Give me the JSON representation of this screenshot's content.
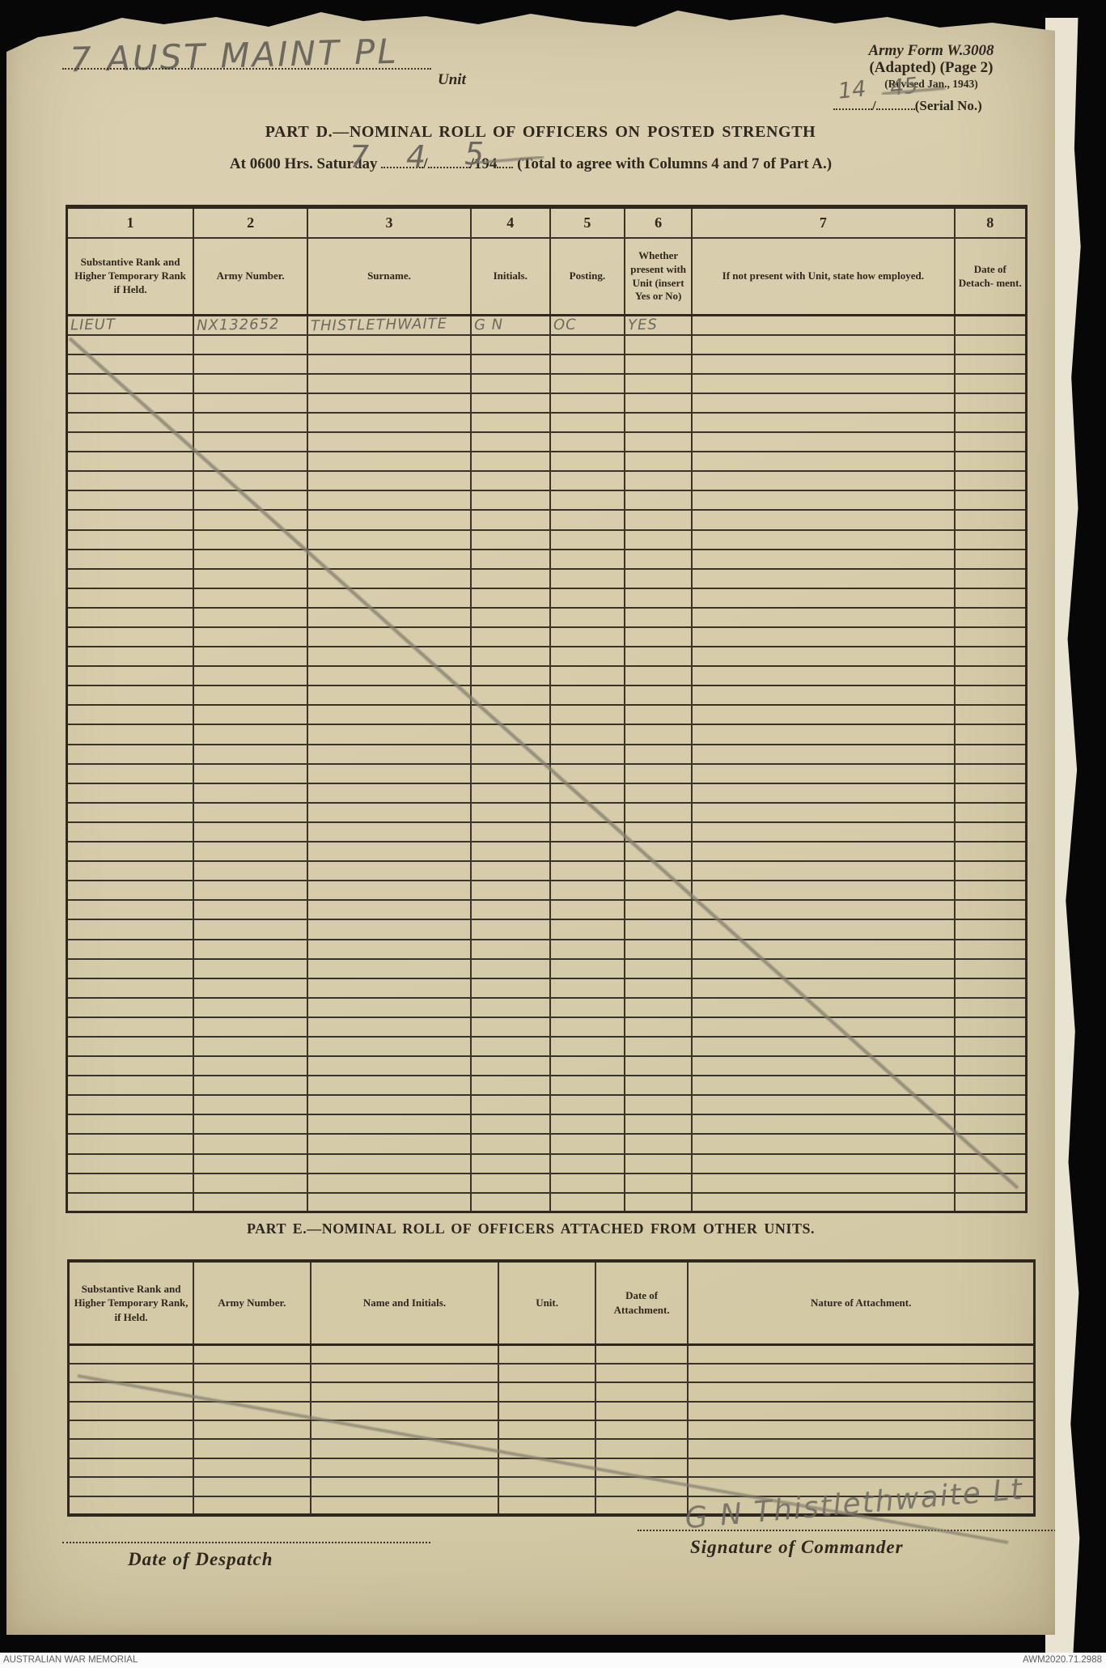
{
  "header": {
    "unit_handwritten": "7 AUST MAINT PL",
    "unit_label": "Unit",
    "form_name_line1": "Army Form W.3008",
    "form_name_line2": "(Adapted)  (Page 2)",
    "form_name_line3": "(Revised Jan., 1943)",
    "serial_handwritten_numerator": "14",
    "serial_handwritten_denominator": "45",
    "serial_slash": "/",
    "serial_label": "(Serial No.)"
  },
  "part_d": {
    "title": "PART D.—NOMINAL ROLL OF OFFICERS ON POSTED STRENGTH",
    "time_line": {
      "prefix": "At 0600 Hrs. Saturday",
      "slash": "/",
      "year_printed": "/194",
      "suffix": "(Total to agree with Columns 4 and 7 of Part A.)",
      "handwritten_day": "7",
      "handwritten_month": "4",
      "handwritten_year_digit": "5"
    },
    "columns": [
      {
        "num": "1",
        "label": "Substantive Rank and Higher Temporary Rank if Held."
      },
      {
        "num": "2",
        "label": "Army Number."
      },
      {
        "num": "3",
        "label": "Surname."
      },
      {
        "num": "4",
        "label": "Initials."
      },
      {
        "num": "5",
        "label": "Posting."
      },
      {
        "num": "6",
        "label": "Whether present with Unit (insert Yes or No)"
      },
      {
        "num": "7",
        "label": "If not present with Unit, state how employed."
      },
      {
        "num": "8",
        "label": "Date of Detach- ment."
      }
    ],
    "first_row_handwritten": [
      "LIEUT",
      "NX132652",
      "THISTLETHWAITE",
      "G N",
      "OC",
      "YES",
      "",
      ""
    ],
    "row_count": 46
  },
  "part_e": {
    "title": "PART E.—NOMINAL ROLL OF OFFICERS ATTACHED FROM OTHER UNITS.",
    "columns": [
      "Substantive Rank and Higher Temporary Rank, if Held.",
      "Army Number.",
      "Name and Initials.",
      "Unit.",
      "Date of Attachment.",
      "Nature of Attachment."
    ],
    "row_count": 9
  },
  "footer": {
    "despatch_label": "Date of Despatch",
    "signature_label": "Signature of Commander",
    "signature_handwritten": "G N Thistlethwaite Lt"
  },
  "archive_bar": {
    "left": "AUSTRALIAN WAR MEMORIAL",
    "right": "AWM2020.71.2988"
  },
  "colors": {
    "paper": "#d7cdab",
    "ink": "#2e281f",
    "pencil": "#6e6960",
    "background": "#070707",
    "archive_bar": "#fbfbfb"
  }
}
